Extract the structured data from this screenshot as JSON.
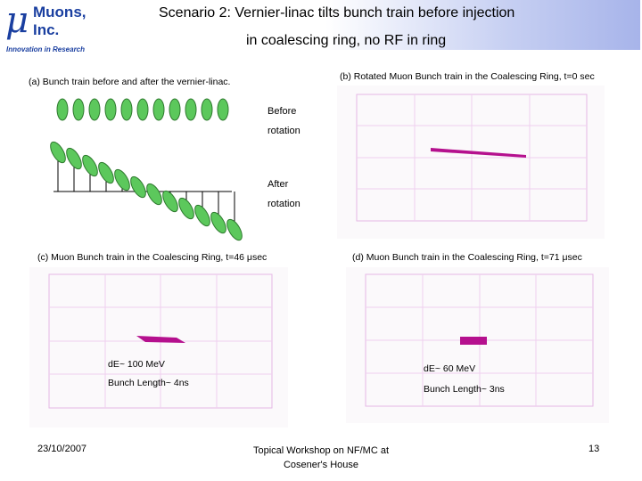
{
  "logo": {
    "symbol": "μ",
    "name_line1": "Muons,",
    "name_line2": "Inc.",
    "tagline": "Innovation in Research"
  },
  "title": {
    "line1": "Scenario 2: Vernier-linac tilts bunch train before injection",
    "line2": "in coalescing ring, no RF in ring"
  },
  "panel_a": {
    "label": "(a)   Bunch train before and after the vernier-linac.",
    "before1": "Before",
    "before2": "rotation",
    "after1": "After",
    "after2": "rotation"
  },
  "panel_b": {
    "label": "(b) Rotated Muon Bunch train in the Coalescing Ring, t=0 sec"
  },
  "panel_c": {
    "label": "(c) Muon Bunch train in the Coalescing Ring, t=46 μsec",
    "de": "dE~ 100 MeV",
    "len": "Bunch Length~ 4ns"
  },
  "panel_d": {
    "label": "(d) Muon Bunch train in the Coalescing Ring, t=71 μsec",
    "de": "dE~ 60 MeV",
    "len": "Bunch Length~ 3ns"
  },
  "footer": {
    "date": "23/10/2007",
    "event_line1": "Topical Workshop on NF/MC at",
    "event_line2": "Cosener's House",
    "page": "13"
  },
  "colors": {
    "brand": "#1a3fa0",
    "bunch_fill": "#5cc85c",
    "plot_grid": "#e6b8e6",
    "particles": "#b5108e"
  },
  "icons": [
    "arrow-icon"
  ]
}
